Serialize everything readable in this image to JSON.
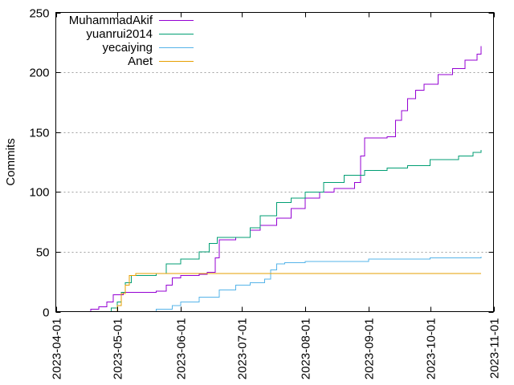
{
  "chart_data": {
    "type": "line",
    "title": "",
    "xlabel": "",
    "ylabel": "Commits",
    "xlim": [
      "2023-04-01",
      "2023-11-01"
    ],
    "ylim": [
      0,
      250
    ],
    "y_ticks": [
      "0",
      "50",
      "100",
      "150",
      "200",
      "250"
    ],
    "x_ticks": [
      "2023-04-01",
      "2023-05-01",
      "2023-06-01",
      "2023-07-01",
      "2023-08-01",
      "2023-09-01",
      "2023-10-01",
      "2023-11-01"
    ],
    "grid": true,
    "legend_position": "top-left",
    "series": [
      {
        "name": "MuhammadAkif",
        "color": "#9400d3",
        "points": [
          [
            "2023-04-10",
            0
          ],
          [
            "2023-04-18",
            2
          ],
          [
            "2023-04-22",
            4
          ],
          [
            "2023-04-26",
            8
          ],
          [
            "2023-04-29",
            14
          ],
          [
            "2023-05-04",
            16
          ],
          [
            "2023-05-10",
            16
          ],
          [
            "2023-05-20",
            17
          ],
          [
            "2023-05-25",
            22
          ],
          [
            "2023-05-28",
            28
          ],
          [
            "2023-06-01",
            30
          ],
          [
            "2023-06-10",
            31
          ],
          [
            "2023-06-14",
            33
          ],
          [
            "2023-06-18",
            45
          ],
          [
            "2023-06-20",
            60
          ],
          [
            "2023-06-28",
            62
          ],
          [
            "2023-07-05",
            68
          ],
          [
            "2023-07-10",
            72
          ],
          [
            "2023-07-18",
            78
          ],
          [
            "2023-07-25",
            86
          ],
          [
            "2023-08-01",
            95
          ],
          [
            "2023-08-08",
            100
          ],
          [
            "2023-08-15",
            103
          ],
          [
            "2023-08-25",
            108
          ],
          [
            "2023-08-28",
            130
          ],
          [
            "2023-08-30",
            145
          ],
          [
            "2023-09-10",
            146
          ],
          [
            "2023-09-14",
            160
          ],
          [
            "2023-09-17",
            168
          ],
          [
            "2023-09-20",
            178
          ],
          [
            "2023-09-24",
            185
          ],
          [
            "2023-09-28",
            190
          ],
          [
            "2023-10-05",
            198
          ],
          [
            "2023-10-12",
            203
          ],
          [
            "2023-10-18",
            210
          ],
          [
            "2023-10-24",
            215
          ],
          [
            "2023-10-26",
            222
          ]
        ]
      },
      {
        "name": "yuanrui2014",
        "color": "#009e73",
        "points": [
          [
            "2023-04-10",
            0
          ],
          [
            "2023-04-28",
            3
          ],
          [
            "2023-05-01",
            8
          ],
          [
            "2023-05-03",
            16
          ],
          [
            "2023-05-05",
            24
          ],
          [
            "2023-05-08",
            30
          ],
          [
            "2023-05-15",
            30
          ],
          [
            "2023-05-20",
            32
          ],
          [
            "2023-05-25",
            40
          ],
          [
            "2023-06-01",
            44
          ],
          [
            "2023-06-10",
            50
          ],
          [
            "2023-06-15",
            57
          ],
          [
            "2023-06-19",
            62
          ],
          [
            "2023-06-28",
            62
          ],
          [
            "2023-07-05",
            70
          ],
          [
            "2023-07-10",
            80
          ],
          [
            "2023-07-18",
            91
          ],
          [
            "2023-07-25",
            95
          ],
          [
            "2023-08-01",
            100
          ],
          [
            "2023-08-10",
            108
          ],
          [
            "2023-08-20",
            114
          ],
          [
            "2023-08-30",
            118
          ],
          [
            "2023-09-10",
            120
          ],
          [
            "2023-09-20",
            122
          ],
          [
            "2023-10-01",
            127
          ],
          [
            "2023-10-15",
            130
          ],
          [
            "2023-10-22",
            133
          ],
          [
            "2023-10-26",
            135
          ]
        ]
      },
      {
        "name": "yecaiying",
        "color": "#56b4e9",
        "points": [
          [
            "2023-05-15",
            0
          ],
          [
            "2023-05-20",
            2
          ],
          [
            "2023-05-28",
            5
          ],
          [
            "2023-06-01",
            8
          ],
          [
            "2023-06-10",
            12
          ],
          [
            "2023-06-20",
            18
          ],
          [
            "2023-06-28",
            22
          ],
          [
            "2023-07-05",
            24
          ],
          [
            "2023-07-12",
            27
          ],
          [
            "2023-07-15",
            35
          ],
          [
            "2023-07-18",
            40
          ],
          [
            "2023-07-22",
            41
          ],
          [
            "2023-08-01",
            42
          ],
          [
            "2023-08-15",
            42
          ],
          [
            "2023-09-01",
            44
          ],
          [
            "2023-09-15",
            44
          ],
          [
            "2023-10-01",
            45
          ],
          [
            "2023-10-26",
            46
          ]
        ]
      },
      {
        "name": "Anet",
        "color": "#e69f00",
        "points": [
          [
            "2023-04-28",
            0
          ],
          [
            "2023-05-01",
            5
          ],
          [
            "2023-05-03",
            15
          ],
          [
            "2023-05-05",
            22
          ],
          [
            "2023-05-07",
            30
          ],
          [
            "2023-05-10",
            32
          ],
          [
            "2023-10-26",
            32
          ]
        ]
      }
    ]
  }
}
